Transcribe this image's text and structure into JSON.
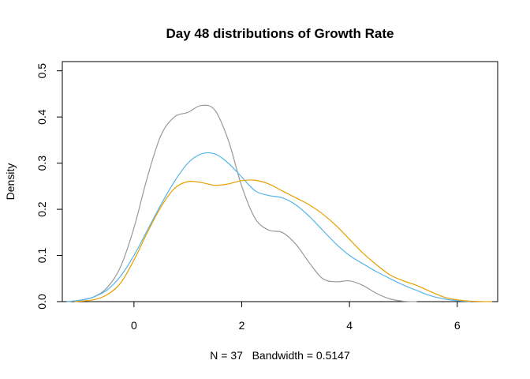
{
  "chart_data": {
    "type": "line",
    "title": "Day 48 distributions of Growth Rate",
    "xlabel": "N = 37   Bandwidth = 0.5147",
    "ylabel": "Density",
    "xlim": [
      -1.33,
      6.75
    ],
    "ylim": [
      0,
      0.52
    ],
    "x_ticks": [
      0,
      2,
      4,
      6
    ],
    "x_tick_labels": [
      "0",
      "2",
      "4",
      "6"
    ],
    "y_ticks": [
      0.0,
      0.1,
      0.2,
      0.3,
      0.4,
      0.5
    ],
    "y_tick_labels": [
      "0.0",
      "0.1",
      "0.2",
      "0.3",
      "0.4",
      "0.5"
    ],
    "grid": false,
    "legend": "none",
    "series": [
      {
        "color": "#999999",
        "points": [
          [
            -1.25,
            0.0
          ],
          [
            -1.0,
            0.003
          ],
          [
            -0.75,
            0.01
          ],
          [
            -0.5,
            0.03
          ],
          [
            -0.25,
            0.075
          ],
          [
            0.0,
            0.16
          ],
          [
            0.25,
            0.27
          ],
          [
            0.5,
            0.36
          ],
          [
            0.75,
            0.4
          ],
          [
            1.0,
            0.41
          ],
          [
            1.25,
            0.425
          ],
          [
            1.5,
            0.415
          ],
          [
            1.75,
            0.35
          ],
          [
            2.0,
            0.25
          ],
          [
            2.25,
            0.18
          ],
          [
            2.5,
            0.155
          ],
          [
            2.75,
            0.15
          ],
          [
            3.0,
            0.125
          ],
          [
            3.25,
            0.085
          ],
          [
            3.5,
            0.05
          ],
          [
            3.75,
            0.043
          ],
          [
            4.0,
            0.045
          ],
          [
            4.25,
            0.035
          ],
          [
            4.5,
            0.018
          ],
          [
            4.75,
            0.006
          ],
          [
            5.0,
            0.001
          ],
          [
            5.25,
            0.0
          ]
        ]
      },
      {
        "color": "#56B4E9",
        "points": [
          [
            -1.25,
            0.0
          ],
          [
            -1.0,
            0.003
          ],
          [
            -0.75,
            0.01
          ],
          [
            -0.5,
            0.025
          ],
          [
            -0.25,
            0.055
          ],
          [
            0.0,
            0.1
          ],
          [
            0.25,
            0.155
          ],
          [
            0.5,
            0.21
          ],
          [
            0.75,
            0.26
          ],
          [
            1.0,
            0.3
          ],
          [
            1.25,
            0.32
          ],
          [
            1.5,
            0.32
          ],
          [
            1.75,
            0.3
          ],
          [
            2.0,
            0.27
          ],
          [
            2.25,
            0.24
          ],
          [
            2.5,
            0.23
          ],
          [
            2.75,
            0.225
          ],
          [
            3.0,
            0.21
          ],
          [
            3.25,
            0.185
          ],
          [
            3.5,
            0.155
          ],
          [
            3.75,
            0.125
          ],
          [
            4.0,
            0.1
          ],
          [
            4.25,
            0.082
          ],
          [
            4.5,
            0.065
          ],
          [
            4.75,
            0.05
          ],
          [
            5.0,
            0.036
          ],
          [
            5.25,
            0.024
          ],
          [
            5.5,
            0.013
          ],
          [
            5.75,
            0.006
          ],
          [
            6.0,
            0.002
          ],
          [
            6.25,
            0.0
          ]
        ]
      },
      {
        "color": "#E69F00",
        "points": [
          [
            -1.1,
            0.0
          ],
          [
            -0.75,
            0.004
          ],
          [
            -0.5,
            0.015
          ],
          [
            -0.25,
            0.04
          ],
          [
            0.0,
            0.09
          ],
          [
            0.25,
            0.15
          ],
          [
            0.5,
            0.205
          ],
          [
            0.75,
            0.245
          ],
          [
            1.0,
            0.26
          ],
          [
            1.25,
            0.258
          ],
          [
            1.5,
            0.252
          ],
          [
            1.75,
            0.255
          ],
          [
            2.0,
            0.262
          ],
          [
            2.25,
            0.263
          ],
          [
            2.5,
            0.255
          ],
          [
            2.75,
            0.24
          ],
          [
            3.0,
            0.225
          ],
          [
            3.25,
            0.21
          ],
          [
            3.5,
            0.19
          ],
          [
            3.75,
            0.165
          ],
          [
            4.0,
            0.135
          ],
          [
            4.25,
            0.105
          ],
          [
            4.5,
            0.08
          ],
          [
            4.75,
            0.058
          ],
          [
            5.0,
            0.045
          ],
          [
            5.25,
            0.035
          ],
          [
            5.5,
            0.022
          ],
          [
            5.75,
            0.01
          ],
          [
            6.0,
            0.004
          ],
          [
            6.25,
            0.001
          ],
          [
            6.65,
            0.0
          ]
        ]
      }
    ]
  }
}
